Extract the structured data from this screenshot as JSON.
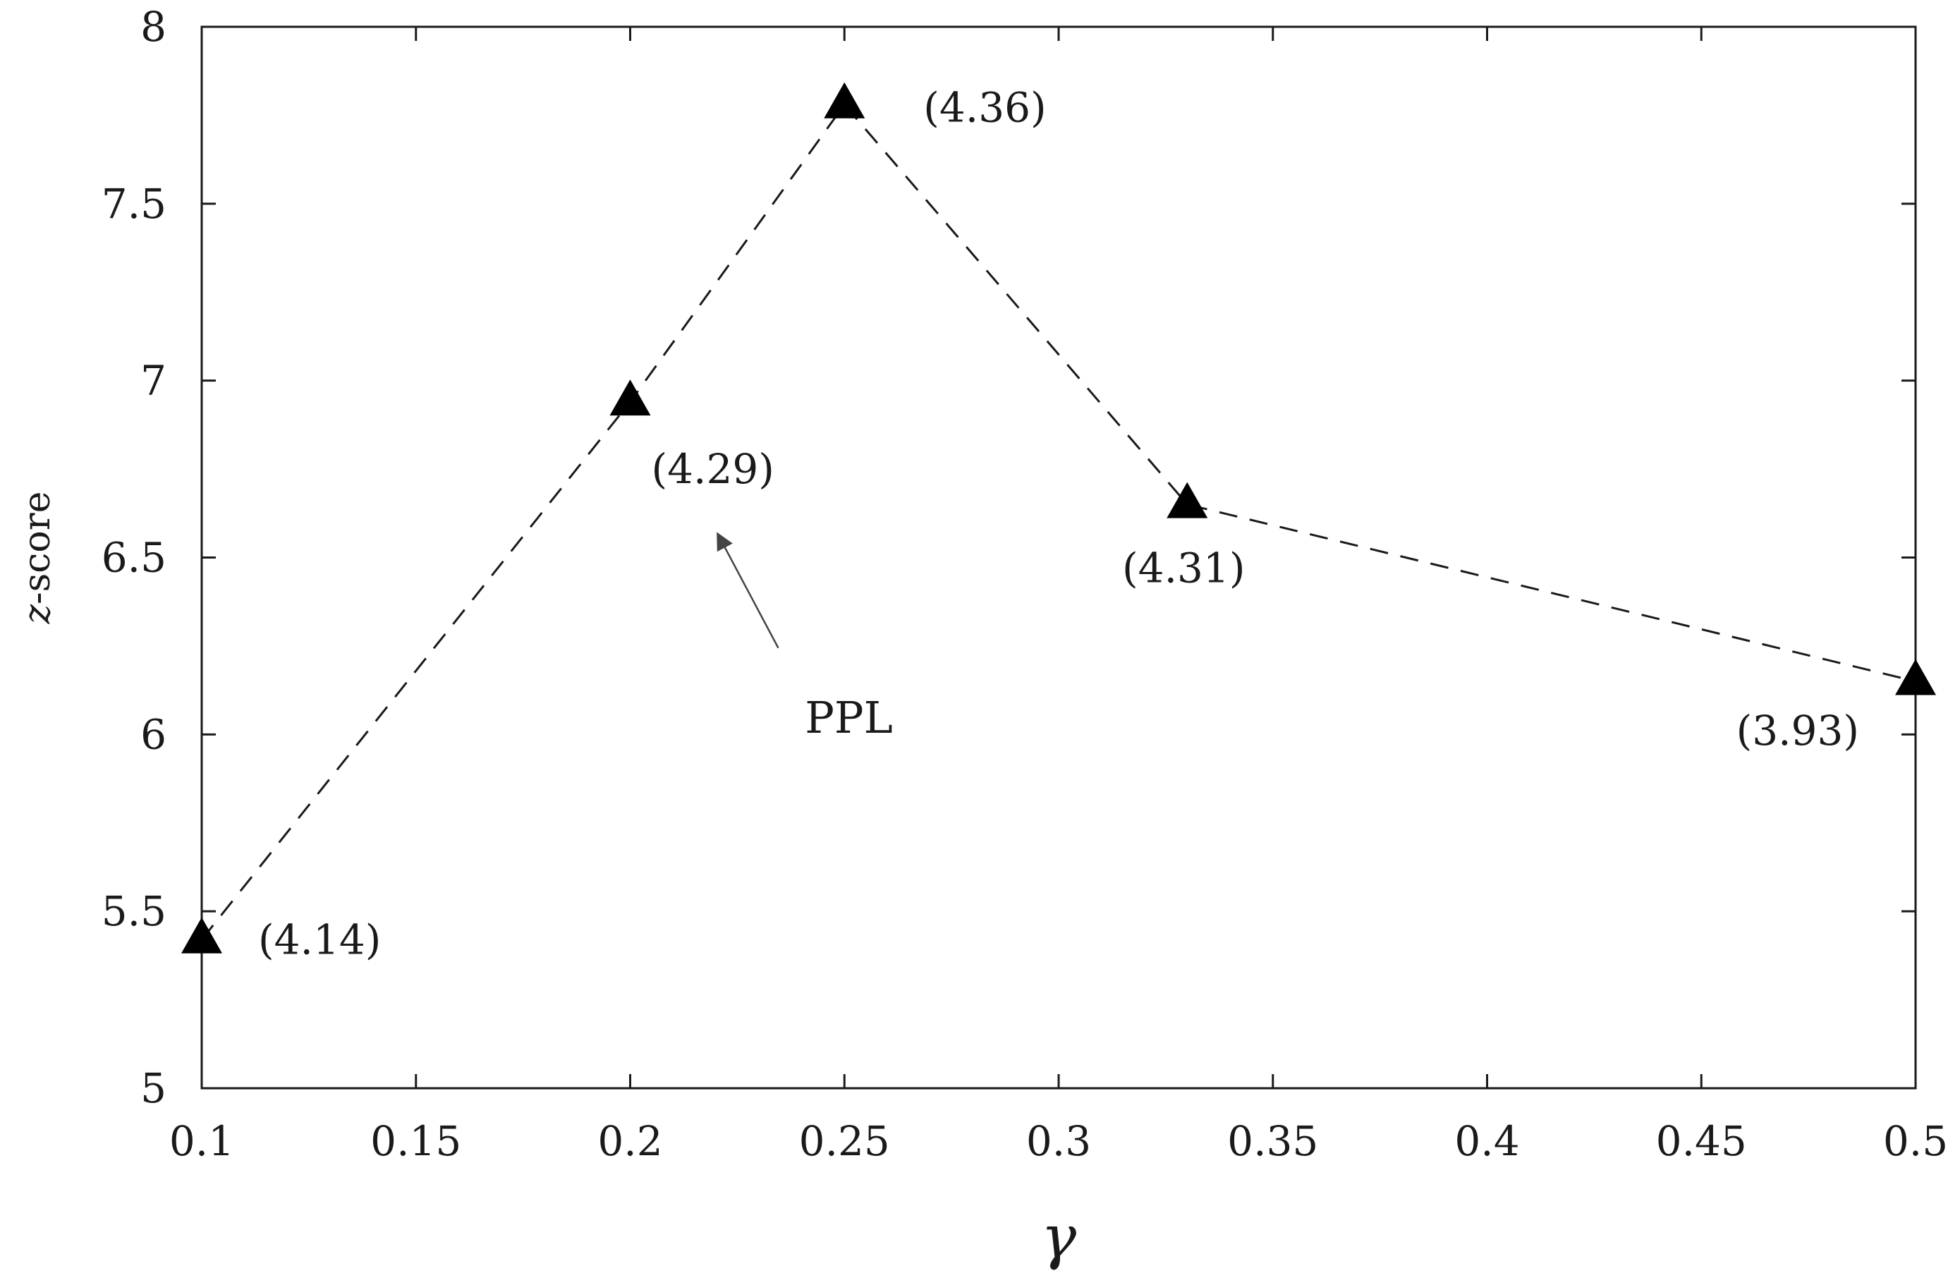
{
  "chart_data": {
    "type": "line",
    "title": "",
    "xlabel": "γ",
    "ylabel_italic": "z",
    "ylabel_rest": "-score",
    "x": [
      0.1,
      0.2,
      0.25,
      0.33,
      0.5
    ],
    "series": [
      {
        "values": [
          5.42,
          6.94,
          7.78,
          6.65,
          6.15
        ],
        "point_labels": [
          "(4.14)",
          "(4.29)",
          "(4.36)",
          "(4.31)",
          "(3.93)"
        ],
        "marker": "triangle",
        "line_style": "dashed",
        "color": "#000000"
      }
    ],
    "xlim": [
      0.1,
      0.5
    ],
    "ylim": [
      5,
      8
    ],
    "xticks": [
      0.1,
      0.15,
      0.2,
      0.25,
      0.3,
      0.35,
      0.4,
      0.45,
      0.5
    ],
    "xtick_labels": [
      "0.1",
      "0.15",
      "0.2",
      "0.25",
      "0.3",
      "0.35",
      "0.4",
      "0.45",
      "0.5"
    ],
    "yticks": [
      5,
      5.5,
      6,
      6.5,
      7,
      7.5,
      8
    ],
    "ytick_labels": [
      "5",
      "5.5",
      "6",
      "6.5",
      "7",
      "7.5",
      "8"
    ],
    "grid": false,
    "annotation": {
      "text": "PPL",
      "points_to_label_of_x": 0.2
    }
  }
}
